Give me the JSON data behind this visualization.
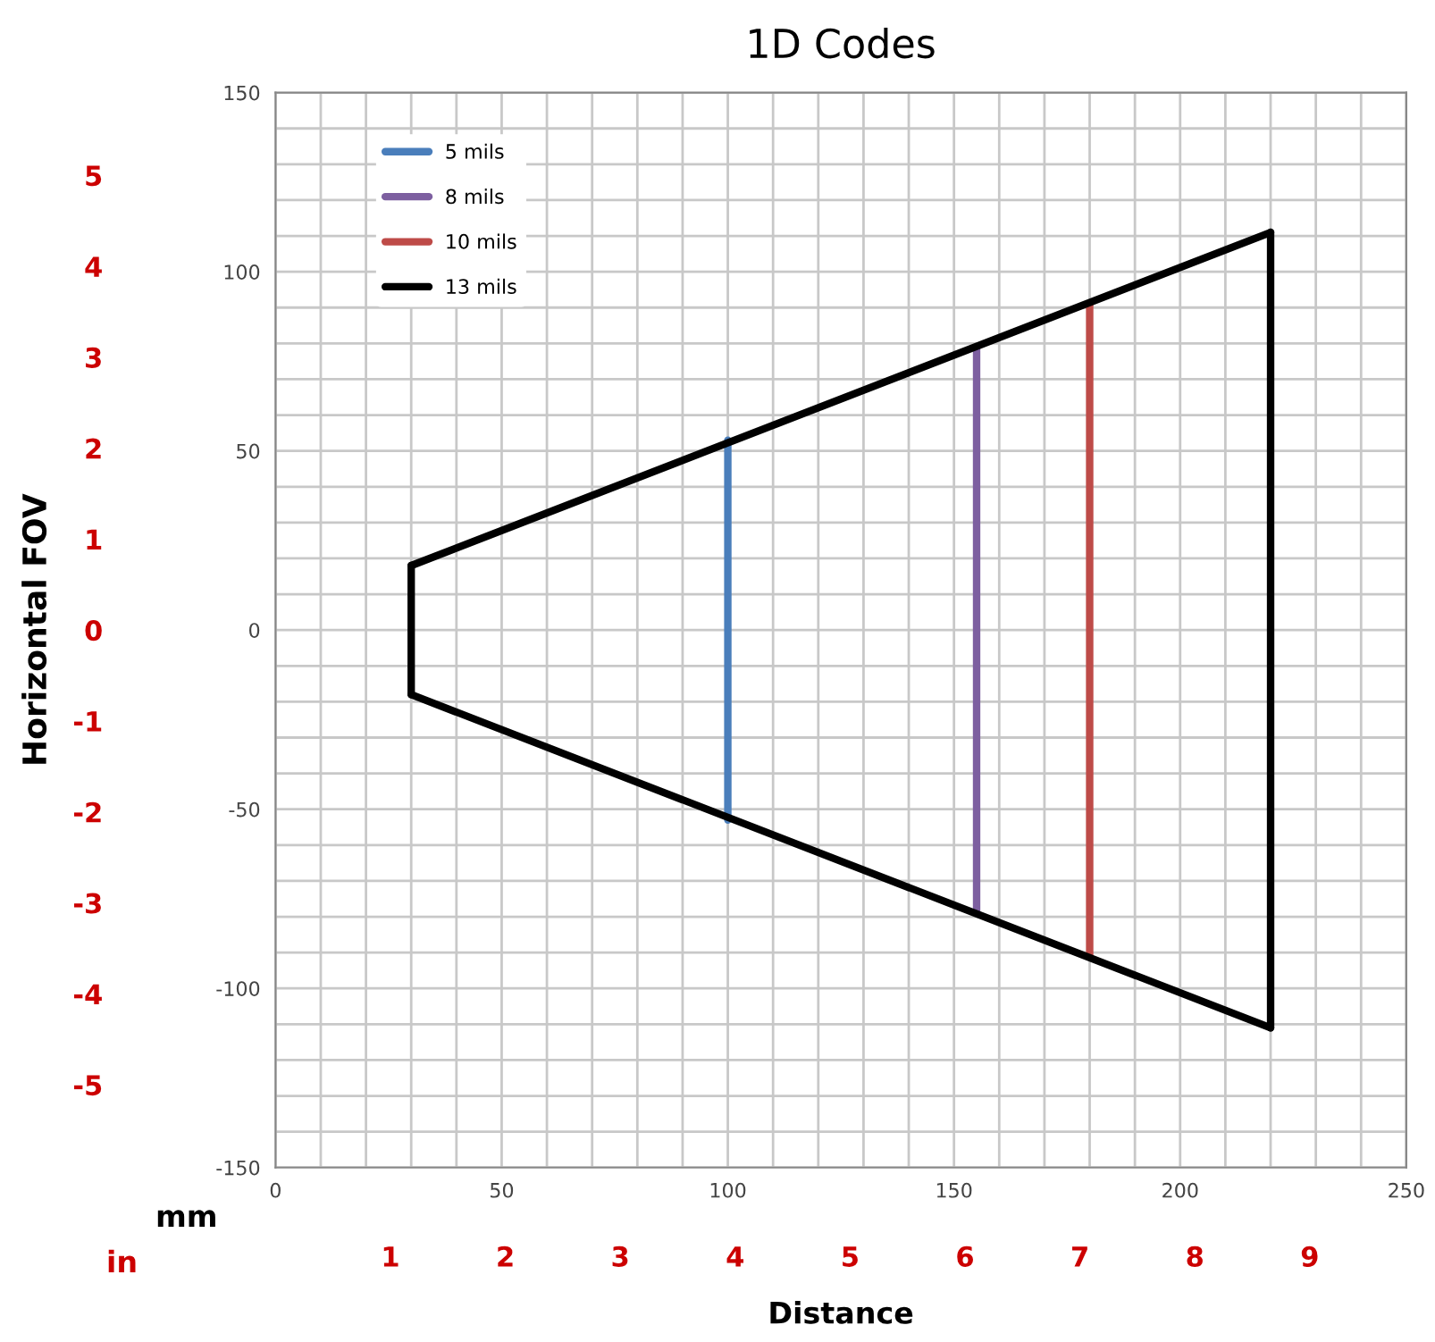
{
  "chart_data": {
    "type": "line",
    "title": "1D Codes",
    "xlabel": "Distance",
    "y2label": "Horizontal FOV",
    "annotations": [
      "mm",
      "in"
    ],
    "series": [
      {
        "name": "5 mils",
        "color": "#4a7ebb",
        "x": [
          100,
          100
        ],
        "values": [
          53,
          -53
        ]
      },
      {
        "name": "8 mils",
        "color": "#7d5fa0",
        "x": [
          155,
          155
        ],
        "values": [
          79,
          -79
        ]
      },
      {
        "name": "10 mils",
        "color": "#be4b48",
        "x": [
          180,
          180
        ],
        "values": [
          91,
          -91
        ]
      },
      {
        "name": "13 mils",
        "color": "#000000",
        "x": [
          30,
          220
        ],
        "values": [
          18,
          111
        ]
      },
      {
        "color": "#000000",
        "x": [
          220,
          220
        ],
        "values": [
          111,
          -111
        ]
      },
      {
        "color": "#000000",
        "x": [
          30,
          220
        ],
        "values": [
          -18,
          -111
        ]
      },
      {
        "color": "#000000",
        "x": [
          30,
          30
        ],
        "values": [
          18,
          -18
        ]
      }
    ],
    "xlim": [
      0,
      250
    ],
    "xticks": [
      0,
      50,
      100,
      150,
      200,
      250
    ],
    "ylim": [
      -150,
      150
    ],
    "yticks": [
      -150,
      -100,
      -50,
      0,
      50,
      100,
      150
    ],
    "x2lim": [
      0,
      9.84
    ],
    "x2ticks": [
      1,
      2,
      3,
      4,
      5,
      6,
      7,
      8,
      9
    ],
    "y2lim": [
      -5.91,
      5.91
    ],
    "y2ticks": [
      -5,
      -4,
      -3,
      -2,
      -1,
      0,
      1,
      2,
      3,
      4,
      5
    ],
    "grid": true,
    "legend": "top left",
    "marker": "none",
    "line_style": "solid"
  }
}
